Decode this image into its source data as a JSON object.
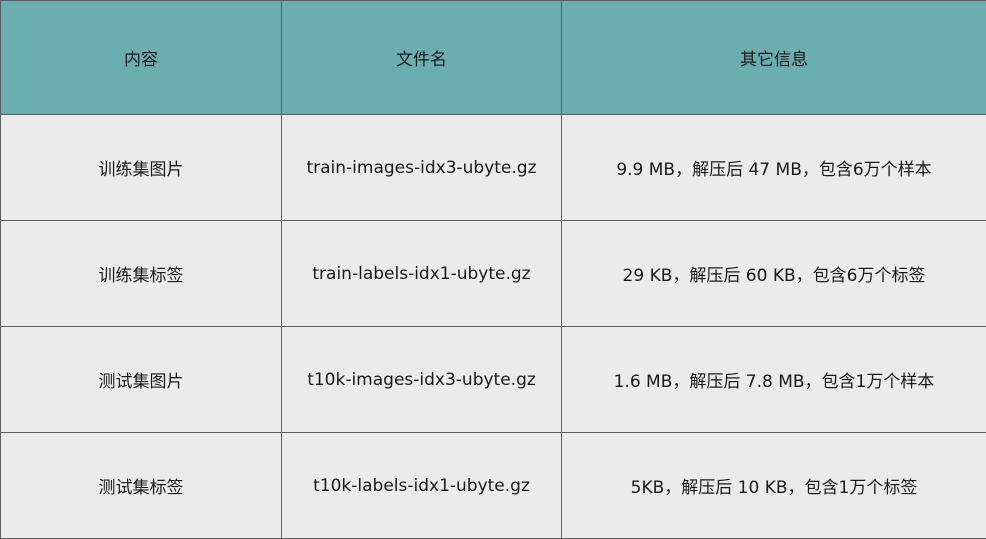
{
  "table": {
    "headers": [
      "内容",
      "文件名",
      "其它信息"
    ],
    "rows": [
      [
        "训练集图片",
        "train-images-idx3-ubyte.gz",
        "9.9 MB，解压后 47 MB，包含6万个样本"
      ],
      [
        "训练集标签",
        "train-labels-idx1-ubyte.gz",
        "29 KB，解压后 60 KB，包含6万个标签"
      ],
      [
        "测试集图片",
        "t10k-images-idx3-ubyte.gz",
        "1.6 MB，解压后 7.8 MB，包含1万个样本"
      ],
      [
        "测试集标签",
        "t10k-labels-idx1-ubyte.gz",
        "5KB，解压后 10 KB，包含1万个标签"
      ]
    ]
  },
  "colors": {
    "header_bg": "#6aaeb0",
    "cell_bg": "#ebebeb",
    "border": "#5a6062"
  }
}
